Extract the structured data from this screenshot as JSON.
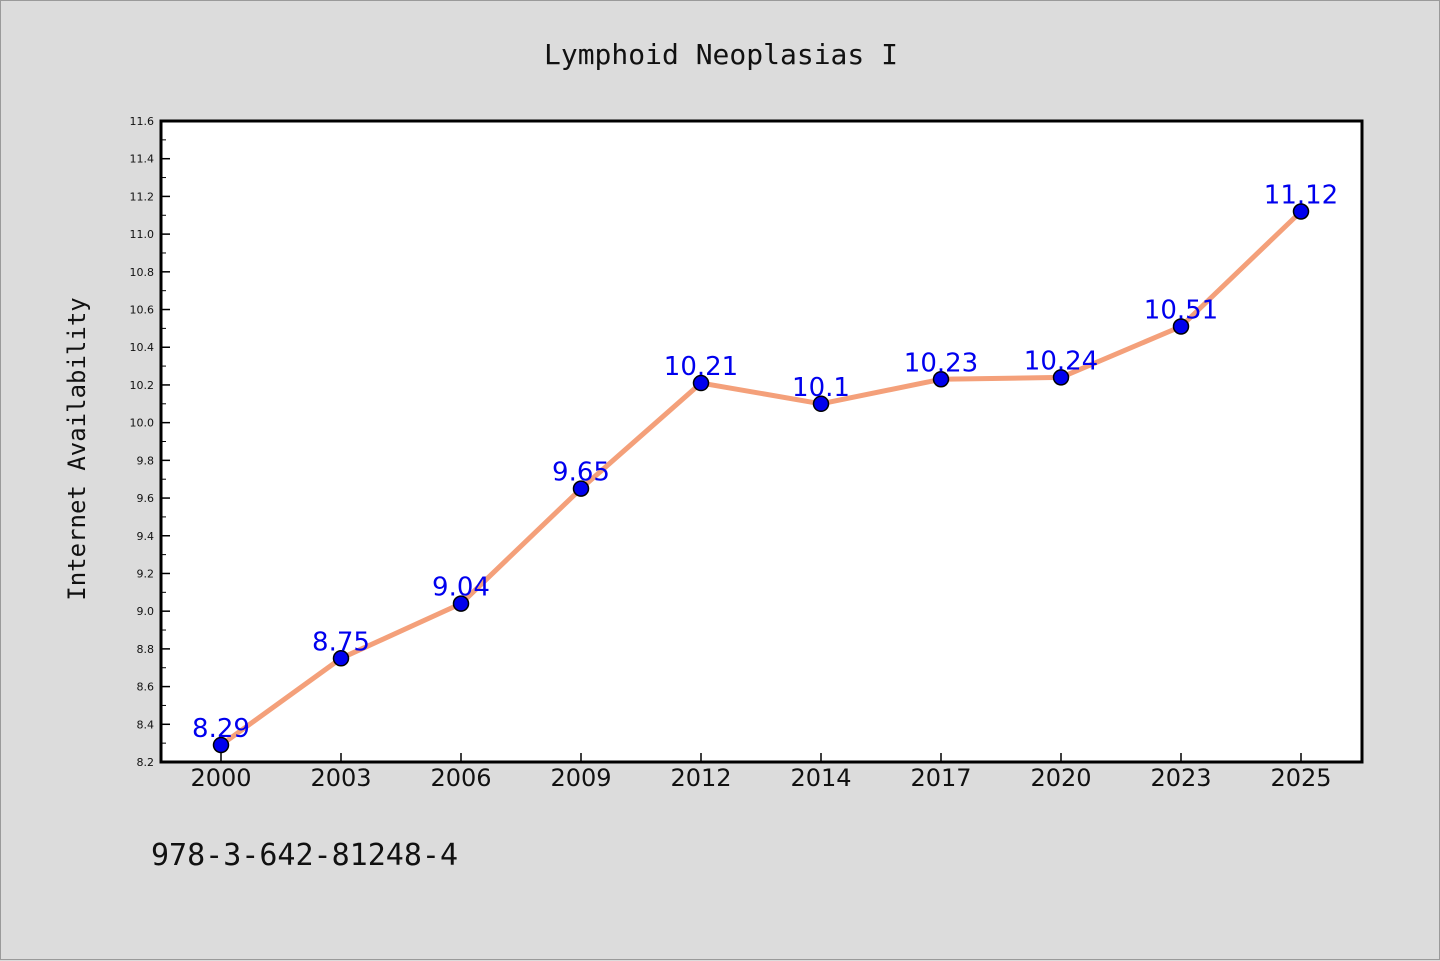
{
  "chart_data": {
    "type": "line",
    "title": "Lymphoid Neoplasias I",
    "xlabel": "",
    "ylabel": "Internet Availability",
    "categories": [
      "2000",
      "2003",
      "2006",
      "2009",
      "2012",
      "2014",
      "2017",
      "2020",
      "2023",
      "2025"
    ],
    "series": [
      {
        "values": [
          8.29,
          8.75,
          9.04,
          9.65,
          10.21,
          10.1,
          10.23,
          10.24,
          10.51,
          11.12
        ],
        "data_labels": [
          "8.29",
          "8.75",
          "9.04",
          "9.65",
          "10.21",
          "10.1",
          "10.23",
          "10.24",
          "10.51",
          "11.12"
        ],
        "line_color": "#f4a07a",
        "marker_color": "#0000ee"
      }
    ],
    "ylim": [
      8.2,
      11.6
    ],
    "yticks": [
      "8.2",
      "8.4",
      "8.6",
      "8.8",
      "9.0",
      "9.2",
      "9.4",
      "9.6",
      "9.8",
      "10.0",
      "10.2",
      "10.4",
      "10.6",
      "10.8",
      "11.0",
      "11.2",
      "11.4",
      "11.6"
    ],
    "label_color": "#0000ee",
    "grid": false,
    "legend": "none"
  },
  "footer": {
    "text": "978-3-642-81248-4"
  }
}
